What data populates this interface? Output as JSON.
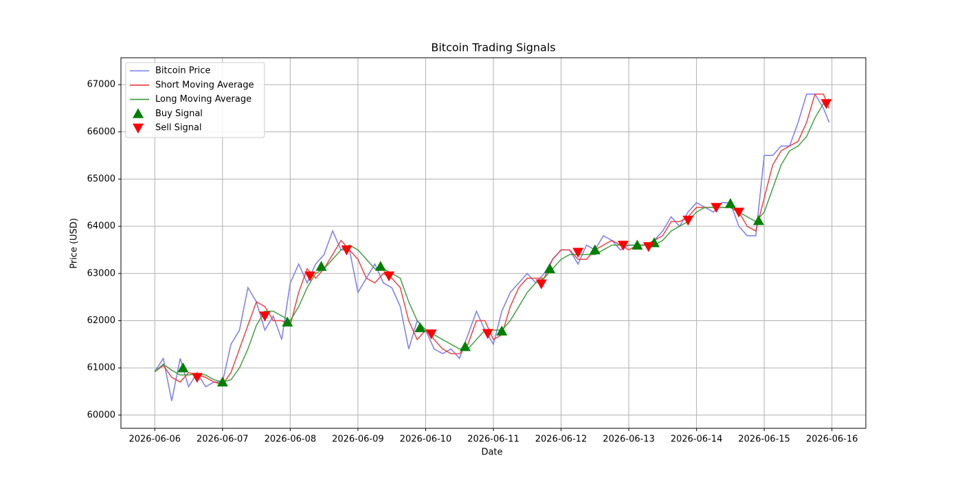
{
  "chart_data": {
    "type": "line",
    "title": "Bitcoin Trading Signals",
    "x_label": "Date",
    "y_label": "Price (USD)",
    "x": [
      "2026-06-06T00:00",
      "2026-06-06T03:00",
      "2026-06-06T06:00",
      "2026-06-06T09:00",
      "2026-06-06T12:00",
      "2026-06-06T15:00",
      "2026-06-06T18:00",
      "2026-06-06T21:00",
      "2026-06-07T00:00",
      "2026-06-07T03:00",
      "2026-06-07T06:00",
      "2026-06-07T09:00",
      "2026-06-07T12:00",
      "2026-06-07T15:00",
      "2026-06-07T18:00",
      "2026-06-07T21:00",
      "2026-06-08T00:00",
      "2026-06-08T03:00",
      "2026-06-08T06:00",
      "2026-06-08T09:00",
      "2026-06-08T12:00",
      "2026-06-08T15:00",
      "2026-06-08T18:00",
      "2026-06-08T21:00",
      "2026-06-09T00:00",
      "2026-06-09T03:00",
      "2026-06-09T06:00",
      "2026-06-09T09:00",
      "2026-06-09T12:00",
      "2026-06-09T15:00",
      "2026-06-09T18:00",
      "2026-06-09T21:00",
      "2026-06-10T00:00",
      "2026-06-10T03:00",
      "2026-06-10T06:00",
      "2026-06-10T09:00",
      "2026-06-10T12:00",
      "2026-06-10T15:00",
      "2026-06-10T18:00",
      "2026-06-10T21:00",
      "2026-06-11T00:00",
      "2026-06-11T03:00",
      "2026-06-11T06:00",
      "2026-06-11T09:00",
      "2026-06-11T12:00",
      "2026-06-11T15:00",
      "2026-06-11T18:00",
      "2026-06-11T21:00",
      "2026-06-12T00:00",
      "2026-06-12T03:00",
      "2026-06-12T06:00",
      "2026-06-12T09:00",
      "2026-06-12T12:00",
      "2026-06-12T15:00",
      "2026-06-12T18:00",
      "2026-06-12T21:00",
      "2026-06-13T00:00",
      "2026-06-13T03:00",
      "2026-06-13T06:00",
      "2026-06-13T09:00",
      "2026-06-13T12:00",
      "2026-06-13T15:00",
      "2026-06-13T18:00",
      "2026-06-13T21:00",
      "2026-06-14T00:00",
      "2026-06-14T03:00",
      "2026-06-14T06:00",
      "2026-06-14T09:00",
      "2026-06-14T12:00",
      "2026-06-14T15:00",
      "2026-06-14T18:00",
      "2026-06-14T21:00",
      "2026-06-15T00:00",
      "2026-06-15T03:00",
      "2026-06-15T06:00",
      "2026-06-15T09:00",
      "2026-06-15T12:00",
      "2026-06-15T15:00",
      "2026-06-15T18:00",
      "2026-06-15T21:00",
      "2026-06-15T23:00"
    ],
    "series": [
      {
        "name": "Bitcoin Price",
        "color": "#7b7bef",
        "values": [
          60920,
          61200,
          60300,
          61200,
          60600,
          60900,
          60600,
          60700,
          60700,
          61500,
          61800,
          62700,
          62400,
          61800,
          62100,
          61600,
          62800,
          63200,
          62800,
          63200,
          63400,
          63900,
          63500,
          63500,
          62600,
          62900,
          63200,
          62800,
          62700,
          62300,
          61400,
          62000,
          61800,
          61400,
          61300,
          61400,
          61200,
          61700,
          62200,
          61800,
          61500,
          62200,
          62600,
          62800,
          63000,
          62800,
          63000,
          63300,
          63500,
          63500,
          63200,
          63600,
          63500,
          63800,
          63700,
          63500,
          63600,
          63600,
          63600,
          63700,
          63900,
          64200,
          64000,
          64300,
          64500,
          64400,
          64300,
          64500,
          64500,
          64000,
          63800,
          63800,
          65500,
          65500,
          65700,
          65700,
          66200,
          66800,
          66800,
          66500,
          66200
        ]
      },
      {
        "name": "Short Moving Average",
        "color": "#e83a3a",
        "values": [
          60920,
          61050,
          60800,
          60700,
          60900,
          60850,
          60800,
          60700,
          60650,
          60900,
          61400,
          61900,
          62400,
          62300,
          62000,
          62000,
          61900,
          62600,
          63100,
          62900,
          63100,
          63400,
          63700,
          63500,
          63300,
          62900,
          62800,
          63000,
          62900,
          62700,
          62000,
          61600,
          61800,
          61600,
          61400,
          61300,
          61300,
          61500,
          62000,
          62000,
          61600,
          61700,
          62300,
          62700,
          62900,
          62900,
          62900,
          63300,
          63500,
          63500,
          63300,
          63300,
          63500,
          63600,
          63700,
          63600,
          63500,
          63600,
          63600,
          63700,
          63800,
          64100,
          64100,
          64200,
          64400,
          64400,
          64400,
          64400,
          64400,
          64300,
          64000,
          63900,
          64600,
          65300,
          65600,
          65700,
          65800,
          66200,
          66800,
          66800,
          66500
        ]
      },
      {
        "name": "Long Moving Average",
        "color": "#3a9a3a",
        "values": [
          60920,
          61080,
          60950,
          60850,
          60850,
          60880,
          60850,
          60750,
          60700,
          60750,
          61000,
          61400,
          61900,
          62200,
          62200,
          62100,
          62000,
          62300,
          62700,
          63000,
          63100,
          63300,
          63500,
          63600,
          63500,
          63300,
          63100,
          63100,
          63000,
          62900,
          62400,
          62000,
          61800,
          61700,
          61600,
          61500,
          61400,
          61400,
          61600,
          61800,
          61800,
          61800,
          62000,
          62300,
          62600,
          62800,
          62900,
          63100,
          63300,
          63400,
          63400,
          63400,
          63400,
          63500,
          63600,
          63600,
          63600,
          63600,
          63600,
          63600,
          63700,
          63900,
          64000,
          64100,
          64300,
          64400,
          64400,
          64400,
          64400,
          64300,
          64200,
          64100,
          64300,
          64800,
          65300,
          65600,
          65700,
          65900,
          66300,
          66600,
          66700
        ]
      },
      {
        "name": "Buy Signal",
        "color": "green",
        "marker": "^",
        "x": [
          "2026-06-06T10:00",
          "2026-06-07T00:00",
          "2026-06-07T23:00",
          "2026-06-08T11:00",
          "2026-06-09T08:00",
          "2026-06-09T22:00",
          "2026-06-10T14:00",
          "2026-06-11T03:00",
          "2026-06-11T20:00",
          "2026-06-12T12:00",
          "2026-06-13T03:00",
          "2026-06-13T09:00",
          "2026-06-14T12:00",
          "2026-06-14T22:00"
        ],
        "values": [
          61000,
          60700,
          61970,
          63150,
          63150,
          61850,
          61450,
          61780,
          63100,
          63500,
          63600,
          63650,
          64480,
          64120
        ]
      },
      {
        "name": "Sell Signal",
        "color": "red",
        "marker": "v",
        "x": [
          "2026-06-06T15:00",
          "2026-06-07T15:00",
          "2026-06-08T07:00",
          "2026-06-08T20:00",
          "2026-06-09T11:00",
          "2026-06-10T02:00",
          "2026-06-10T22:00",
          "2026-06-11T17:00",
          "2026-06-12T06:00",
          "2026-06-12T22:00",
          "2026-06-13T07:00",
          "2026-06-13T21:00",
          "2026-06-14T07:00",
          "2026-06-14T15:00",
          "2026-06-15T22:00"
        ],
        "values": [
          60800,
          62100,
          62950,
          63500,
          62950,
          61720,
          61730,
          62780,
          63450,
          63600,
          63570,
          64130,
          64400,
          64300,
          66600
        ]
      }
    ],
    "xlim": [
      "2026-06-05T12:00",
      "2026-06-16T12:00"
    ],
    "xticks": [
      "2026-06-06",
      "2026-06-07",
      "2026-06-08",
      "2026-06-09",
      "2026-06-10",
      "2026-06-11",
      "2026-06-12",
      "2026-06-13",
      "2026-06-14",
      "2026-06-15",
      "2026-06-16"
    ],
    "ylim": [
      59720,
      67570
    ],
    "yticks": [
      60000,
      61000,
      62000,
      63000,
      64000,
      65000,
      66000,
      67000
    ],
    "grid": true,
    "legend": "upper left"
  }
}
